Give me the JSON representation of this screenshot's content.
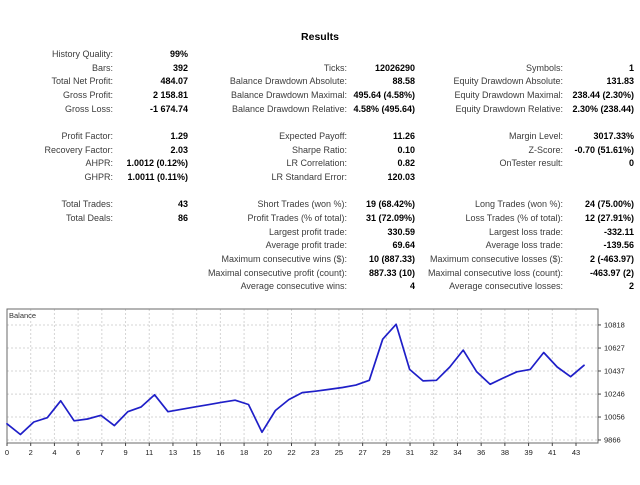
{
  "title": "Results",
  "stats": {
    "rows": [
      [
        "History Quality:",
        "99%",
        "",
        "",
        "",
        ""
      ],
      [
        "Bars:",
        "392",
        "Ticks:",
        "12026290",
        "Symbols:",
        "1"
      ],
      [
        "Total Net Profit:",
        "484.07",
        "Balance Drawdown Absolute:",
        "88.58",
        "Equity Drawdown Absolute:",
        "131.83"
      ],
      [
        "Gross Profit:",
        "2 158.81",
        "Balance Drawdown Maximal:",
        "495.64 (4.58%)",
        "Equity Drawdown Maximal:",
        "238.44 (2.30%)"
      ],
      [
        "Gross Loss:",
        "-1 674.74",
        "Balance Drawdown Relative:",
        "4.58% (495.64)",
        "Equity Drawdown Relative:",
        "2.30% (238.44)"
      ],
      [
        "",
        "",
        "",
        "",
        "",
        ""
      ],
      [
        "Profit Factor:",
        "1.29",
        "Expected Payoff:",
        "11.26",
        "Margin Level:",
        "3017.33%"
      ],
      [
        "Recovery Factor:",
        "2.03",
        "Sharpe Ratio:",
        "0.10",
        "Z-Score:",
        "-0.70 (51.61%)"
      ],
      [
        "AHPR:",
        "1.0012 (0.12%)",
        "LR Correlation:",
        "0.82",
        "OnTester result:",
        "0"
      ],
      [
        "GHPR:",
        "1.0011 (0.11%)",
        "LR Standard Error:",
        "120.03",
        "",
        ""
      ],
      [
        "",
        "",
        "",
        "",
        "",
        ""
      ],
      [
        "Total Trades:",
        "43",
        "Short Trades (won %):",
        "19 (68.42%)",
        "Long Trades (won %):",
        "24 (75.00%)"
      ],
      [
        "Total Deals:",
        "86",
        "Profit Trades (% of total):",
        "31 (72.09%)",
        "Loss Trades (% of total):",
        "12 (27.91%)"
      ],
      [
        "",
        "",
        "Largest profit trade:",
        "330.59",
        "Largest loss trade:",
        "-332.11"
      ],
      [
        "",
        "",
        "Average profit trade:",
        "69.64",
        "Average loss trade:",
        "-139.56"
      ],
      [
        "",
        "",
        "Maximum consecutive wins ($):",
        "10 (887.33)",
        "Maximum consecutive losses ($):",
        "2 (-463.97)"
      ],
      [
        "",
        "",
        "Maximal consecutive profit (count):",
        "887.33 (10)",
        "Maximal consecutive loss (count):",
        "-463.97 (2)"
      ],
      [
        "",
        "",
        "Average consecutive wins:",
        "4",
        "Average consecutive losses:",
        "2"
      ]
    ]
  },
  "chart_data": {
    "type": "line",
    "legend": "Balance",
    "legend_position": "top-left",
    "grid": true,
    "line_color": "#1f1fc8",
    "grid_color": "#d4d4d4",
    "border_color": "#6a6a6a",
    "axis_text_color": "#1a1a1a",
    "x_tick_labels": [
      "0",
      "2",
      "4",
      "6",
      "7",
      "9",
      "11",
      "13",
      "15",
      "16",
      "18",
      "20",
      "22",
      "23",
      "25",
      "27",
      "29",
      "31",
      "32",
      "34",
      "36",
      "38",
      "39",
      "41",
      "43"
    ],
    "y_ticks": [
      9866,
      10056,
      10246,
      10437,
      10627,
      10818
    ],
    "ylim": [
      9841,
      10950
    ],
    "xlim": [
      0,
      43
    ],
    "series": [
      {
        "name": "Balance",
        "x": [
          0,
          1,
          2,
          3,
          4,
          5,
          6,
          7,
          8,
          9,
          10,
          11,
          12,
          13,
          14,
          15,
          16,
          17,
          18,
          19,
          20,
          21,
          22,
          23,
          24,
          25,
          26,
          27,
          28,
          29,
          30,
          31,
          32,
          33,
          34,
          35,
          36,
          37,
          38,
          39,
          40,
          41,
          42,
          43
        ],
        "values": [
          10000,
          9911,
          10015,
          10050,
          10190,
          10025,
          10040,
          10070,
          9985,
          10100,
          10140,
          10240,
          10100,
          10120,
          10140,
          10158,
          10178,
          10195,
          10160,
          9930,
          10110,
          10200,
          10258,
          10270,
          10285,
          10300,
          10320,
          10360,
          10700,
          10823,
          10450,
          10355,
          10360,
          10470,
          10610,
          10430,
          10327,
          10380,
          10430,
          10450,
          10590,
          10470,
          10390,
          10484
        ]
      }
    ]
  }
}
